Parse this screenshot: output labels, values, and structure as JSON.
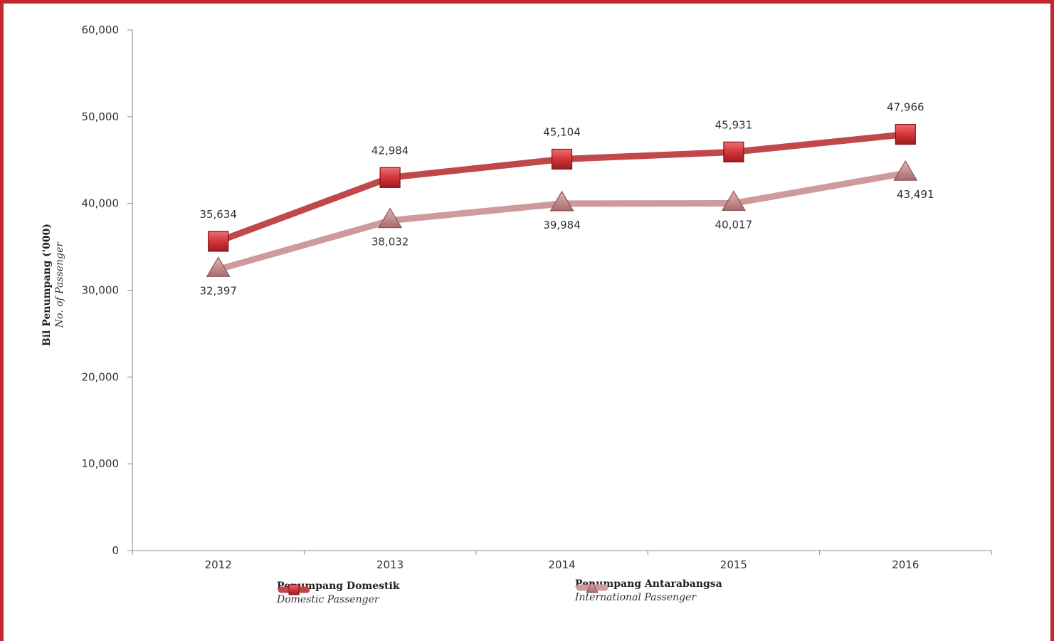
{
  "chart_data": {
    "type": "line",
    "categories": [
      "2012",
      "2013",
      "2014",
      "2015",
      "2016"
    ],
    "ylim": [
      0,
      60000
    ],
    "yticks": [
      "0",
      "10,000",
      "20,000",
      "30,000",
      "40,000",
      "50,000",
      "60,000"
    ],
    "ylabel": "Bil Penumpang ('000)",
    "ylabel_sub": "No. of Passenger",
    "grid": false,
    "legend_position": "bottom",
    "series": [
      {
        "name": "Penumpang Domestik",
        "name_sub": "Domestic Passenger",
        "values": [
          35634,
          42984,
          45104,
          45931,
          47966
        ],
        "labels": [
          "35,634",
          "42,984",
          "45,104",
          "45,931",
          "47,966"
        ],
        "marker": "square",
        "color": "#c0474a",
        "marker_color": "#d3353a"
      },
      {
        "name": "Penumpang Antarabangsa",
        "name_sub": "International Passenger",
        "values": [
          32397,
          38032,
          39984,
          40017,
          43491
        ],
        "labels": [
          "32,397",
          "38,032",
          "39,984",
          "40,017",
          "43,491"
        ],
        "marker": "triangle",
        "color": "#cf9a9b",
        "marker_color": "#c28587"
      }
    ]
  },
  "frame_color": "#c1272d"
}
